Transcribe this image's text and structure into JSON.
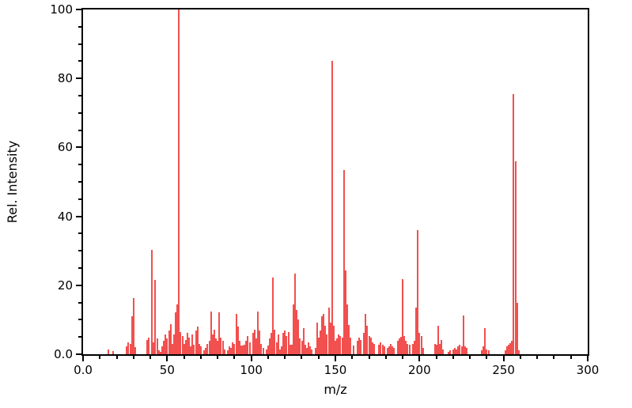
{
  "figure": {
    "background_color": "#ffffff",
    "bar_color": "#f03030",
    "axis_color": "#000000"
  },
  "chart_data": {
    "type": "bar",
    "title": "",
    "xlabel": "m/z",
    "ylabel": "Rel. Intensity",
    "xlim": [
      0,
      300
    ],
    "ylim": [
      0,
      100
    ],
    "grid": false,
    "legend": null,
    "x_major_ticks": [
      0,
      50,
      100,
      150,
      200,
      250,
      300
    ],
    "x_major_tick_labels": [
      "0.0",
      "50",
      "100",
      "150",
      "200",
      "250",
      "300"
    ],
    "x_minor_tick_interval": 10,
    "y_major_ticks": [
      0,
      20,
      40,
      60,
      80,
      100
    ],
    "y_major_tick_labels": [
      "0.0",
      "20",
      "40",
      "60",
      "80",
      "100"
    ],
    "y_minor_tick_interval": 5,
    "peaks": [
      [
        15,
        1.3
      ],
      [
        18,
        0.9
      ],
      [
        26,
        2.3
      ],
      [
        27,
        3.5
      ],
      [
        28,
        3.0
      ],
      [
        29,
        11.0
      ],
      [
        30,
        16.4
      ],
      [
        31,
        2.0
      ],
      [
        38,
        4.2
      ],
      [
        39,
        4.8
      ],
      [
        41,
        30.4
      ],
      [
        42,
        3.4
      ],
      [
        43,
        21.6
      ],
      [
        44,
        4.5
      ],
      [
        45,
        1.1
      ],
      [
        46,
        0.8
      ],
      [
        47,
        2.3
      ],
      [
        48,
        3.8
      ],
      [
        49,
        5.7
      ],
      [
        50,
        4.5
      ],
      [
        51,
        6.8
      ],
      [
        52,
        8.7
      ],
      [
        53,
        3.0
      ],
      [
        54,
        5.7
      ],
      [
        55,
        12.1
      ],
      [
        56,
        14.5
      ],
      [
        57,
        100.0
      ],
      [
        58,
        6.4
      ],
      [
        59,
        5.3
      ],
      [
        60,
        3.0
      ],
      [
        61,
        4.2
      ],
      [
        62,
        6.1
      ],
      [
        63,
        4.9
      ],
      [
        64,
        2.3
      ],
      [
        65,
        5.7
      ],
      [
        66,
        2.7
      ],
      [
        67,
        6.8
      ],
      [
        68,
        8.0
      ],
      [
        69,
        3.0
      ],
      [
        70,
        2.3
      ],
      [
        72,
        1.1
      ],
      [
        73,
        1.9
      ],
      [
        74,
        3.0
      ],
      [
        75,
        3.8
      ],
      [
        76,
        12.5
      ],
      [
        77,
        5.7
      ],
      [
        78,
        7.2
      ],
      [
        79,
        4.5
      ],
      [
        80,
        4.0
      ],
      [
        81,
        12.1
      ],
      [
        82,
        4.9
      ],
      [
        83,
        3.8
      ],
      [
        84,
        1.5
      ],
      [
        86,
        1.1
      ],
      [
        87,
        2.3
      ],
      [
        88,
        1.9
      ],
      [
        89,
        3.4
      ],
      [
        90,
        3.0
      ],
      [
        91,
        11.7
      ],
      [
        92,
        8.0
      ],
      [
        93,
        3.8
      ],
      [
        94,
        2.5
      ],
      [
        95,
        2.5
      ],
      [
        96,
        2.7
      ],
      [
        97,
        3.8
      ],
      [
        98,
        5.3
      ],
      [
        99,
        3.4
      ],
      [
        101,
        6.1
      ],
      [
        102,
        7.2
      ],
      [
        103,
        4.5
      ],
      [
        104,
        12.5
      ],
      [
        105,
        6.8
      ],
      [
        106,
        3.0
      ],
      [
        107,
        1.9
      ],
      [
        109,
        1.5
      ],
      [
        110,
        2.5
      ],
      [
        111,
        4.5
      ],
      [
        112,
        6.2
      ],
      [
        113,
        22.3
      ],
      [
        114,
        7.2
      ],
      [
        115,
        3.4
      ],
      [
        116,
        5.7
      ],
      [
        117,
        1.5
      ],
      [
        118,
        2.3
      ],
      [
        119,
        6.1
      ],
      [
        120,
        6.8
      ],
      [
        121,
        5.3
      ],
      [
        122,
        6.4
      ],
      [
        123,
        2.7
      ],
      [
        124,
        2.7
      ],
      [
        125,
        14.5
      ],
      [
        126,
        23.3
      ],
      [
        127,
        12.9
      ],
      [
        128,
        10.2
      ],
      [
        129,
        4.5
      ],
      [
        130,
        3.8
      ],
      [
        131,
        7.6
      ],
      [
        132,
        2.7
      ],
      [
        133,
        1.9
      ],
      [
        134,
        3.4
      ],
      [
        135,
        2.3
      ],
      [
        136,
        1.5
      ],
      [
        138,
        1.9
      ],
      [
        139,
        9.1
      ],
      [
        140,
        4.9
      ],
      [
        141,
        6.8
      ],
      [
        142,
        11.0
      ],
      [
        143,
        11.7
      ],
      [
        144,
        8.3
      ],
      [
        145,
        5.7
      ],
      [
        146,
        13.6
      ],
      [
        147,
        9.1
      ],
      [
        148,
        85.2
      ],
      [
        149,
        8.3
      ],
      [
        150,
        3.8
      ],
      [
        151,
        4.5
      ],
      [
        152,
        5.7
      ],
      [
        153,
        5.3
      ],
      [
        154,
        4.9
      ],
      [
        155,
        53.4
      ],
      [
        156,
        24.3
      ],
      [
        157,
        14.4
      ],
      [
        158,
        8.4
      ],
      [
        159,
        4.9
      ],
      [
        161,
        2.5
      ],
      [
        163,
        3.8
      ],
      [
        164,
        4.9
      ],
      [
        165,
        4.2
      ],
      [
        167,
        6.1
      ],
      [
        168,
        11.7
      ],
      [
        169,
        8.3
      ],
      [
        170,
        5.3
      ],
      [
        171,
        4.9
      ],
      [
        172,
        3.4
      ],
      [
        173,
        3.0
      ],
      [
        176,
        2.7
      ],
      [
        177,
        3.4
      ],
      [
        178,
        2.7
      ],
      [
        179,
        2.3
      ],
      [
        181,
        1.9
      ],
      [
        182,
        2.3
      ],
      [
        183,
        3.0
      ],
      [
        184,
        2.3
      ],
      [
        185,
        1.9
      ],
      [
        187,
        3.8
      ],
      [
        188,
        4.5
      ],
      [
        189,
        5.0
      ],
      [
        190,
        21.8
      ],
      [
        191,
        5.3
      ],
      [
        192,
        3.8
      ],
      [
        193,
        3.0
      ],
      [
        194,
        2.7
      ],
      [
        196,
        3.0
      ],
      [
        197,
        3.8
      ],
      [
        198,
        13.6
      ],
      [
        199,
        36.0
      ],
      [
        200,
        6.1
      ],
      [
        201,
        5.3
      ],
      [
        202,
        1.9
      ],
      [
        209,
        3.0
      ],
      [
        210,
        2.7
      ],
      [
        211,
        8.3
      ],
      [
        212,
        3.0
      ],
      [
        213,
        4.2
      ],
      [
        214,
        1.5
      ],
      [
        217,
        0.8
      ],
      [
        218,
        1.1
      ],
      [
        220,
        1.5
      ],
      [
        221,
        1.9
      ],
      [
        222,
        1.5
      ],
      [
        223,
        2.3
      ],
      [
        224,
        2.7
      ],
      [
        225,
        2.3
      ],
      [
        226,
        11.3
      ],
      [
        227,
        2.3
      ],
      [
        228,
        1.9
      ],
      [
        237,
        1.1
      ],
      [
        238,
        2.3
      ],
      [
        239,
        7.5
      ],
      [
        240,
        1.5
      ],
      [
        241,
        1.1
      ],
      [
        251,
        1.1
      ],
      [
        252,
        2.3
      ],
      [
        253,
        2.7
      ],
      [
        254,
        3.2
      ],
      [
        255,
        3.8
      ],
      [
        256,
        75.5
      ],
      [
        257,
        56.0
      ],
      [
        258,
        15.0
      ],
      [
        259,
        1.1
      ]
    ]
  }
}
